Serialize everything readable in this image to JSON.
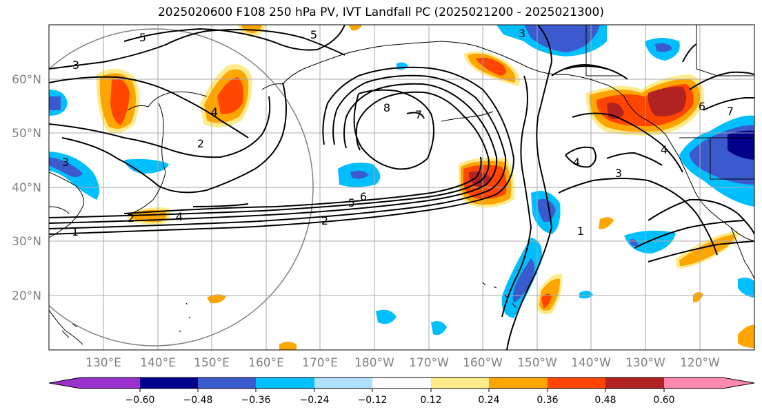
{
  "title": "2025020600 F108 250 hPa PV, IVT Landfall PC (2025021200 - 2025021300)",
  "map": {
    "lat_labels": [
      "60°N",
      "50°N",
      "40°N",
      "30°N",
      "20°N"
    ],
    "lon_labels": [
      "130°E",
      "140°E",
      "150°E",
      "160°E",
      "170°E",
      "180°W",
      "170°W",
      "160°W",
      "150°W",
      "140°W",
      "130°W",
      "120°W"
    ],
    "extent": {
      "lon_min": 120,
      "lon_max": 247,
      "lat_min": 10,
      "lat_max": 70
    },
    "grid": true,
    "contour_labels": [
      "5",
      "5",
      "3",
      "3",
      "3",
      "8",
      "7",
      "7",
      "6",
      "6",
      "5",
      "4",
      "4",
      "4",
      "4",
      "2",
      "2",
      "1",
      "1",
      "2",
      "3"
    ]
  },
  "colorbar": {
    "tick_labels": [
      "−0.60",
      "−0.48",
      "−0.36",
      "−0.24",
      "−0.12",
      "0.12",
      "0.24",
      "0.36",
      "0.48",
      "0.60"
    ],
    "colors": [
      "#9932cc",
      "#00008b",
      "#3a5acd",
      "#00bfff",
      "#b0e0ff",
      "#ffffff",
      "#ffeb8a",
      "#ffa500",
      "#ff4500",
      "#b22222",
      "#ff88b0"
    ],
    "extend": "both"
  }
}
